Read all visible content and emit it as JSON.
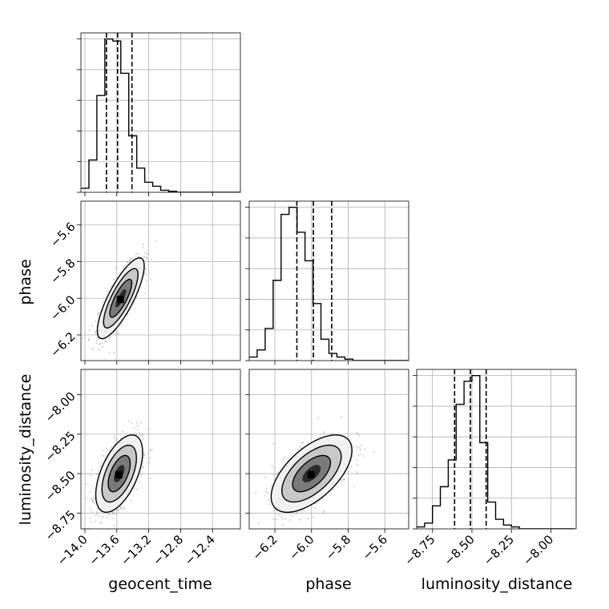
{
  "chart_data": {
    "type": "corner",
    "parameters": [
      "geocent_time",
      "phase",
      "luminosity_distance"
    ],
    "axes": {
      "geocent_time": {
        "label": "geocent_time",
        "range": [
          -14.05,
          -12.05
        ],
        "ticks": [
          -14.0,
          -13.6,
          -13.2,
          -12.8,
          -12.4
        ],
        "tick_labels": [
          "−14.0",
          "−13.6",
          "−13.2",
          "−12.8",
          "−12.4"
        ]
      },
      "phase": {
        "label": "phase",
        "range": [
          -6.34,
          -5.47
        ],
        "ticks": [
          -6.2,
          -6.0,
          -5.8,
          -5.6
        ],
        "tick_labels": [
          "−6.2",
          "−6.0",
          "−5.8",
          "−5.6"
        ]
      },
      "luminosity_distance": {
        "label": "luminosity_distance",
        "range": [
          -8.85,
          -7.84
        ],
        "ticks": [
          -8.75,
          -8.5,
          -8.25,
          -8.0
        ],
        "tick_labels": [
          "−8.75",
          "−8.50",
          "−8.25",
          "−8.00"
        ]
      }
    },
    "marginals": [
      {
        "param": "geocent_time",
        "bin_start": -14.05,
        "bin_width": 0.1,
        "counts": [
          2,
          16,
          48,
          76,
          75,
          59,
          28,
          12,
          5,
          3,
          1,
          0.5,
          0,
          0,
          0,
          0,
          0,
          0,
          0,
          0
        ],
        "quantiles": [
          -13.73,
          -13.59,
          -13.41
        ]
      },
      {
        "param": "phase",
        "bin_start": -6.34,
        "bin_width": 0.0435,
        "counts": [
          2,
          6,
          18,
          45,
          82,
          86,
          72,
          56,
          32,
          12,
          4,
          2,
          0.8,
          0,
          0,
          0,
          0,
          0,
          0,
          0
        ],
        "quantiles": [
          -6.08,
          -5.99,
          -5.89
        ]
      },
      {
        "param": "luminosity_distance",
        "bin_start": -8.85,
        "bin_width": 0.05,
        "counts": [
          1,
          3,
          12,
          22,
          36,
          65,
          77,
          80,
          45,
          14,
          5,
          2,
          1,
          0,
          0,
          0,
          0,
          0,
          0,
          0
        ],
        "quantiles": [
          -8.61,
          -8.51,
          -8.41
        ]
      }
    ],
    "joint": [
      {
        "x": "geocent_time",
        "y": "phase",
        "center": [
          -13.55,
          -6.0
        ],
        "sd": [
          0.12,
          0.09
        ],
        "corr": 0.8
      },
      {
        "x": "geocent_time",
        "y": "luminosity_distance",
        "center": [
          -13.57,
          -8.5
        ],
        "sd": [
          0.12,
          0.1
        ],
        "corr": 0.55
      },
      {
        "x": "phase",
        "y": "luminosity_distance",
        "center": [
          -6.0,
          -8.5
        ],
        "sd": [
          0.09,
          0.1
        ],
        "corr": 0.6
      }
    ],
    "grid": true
  }
}
